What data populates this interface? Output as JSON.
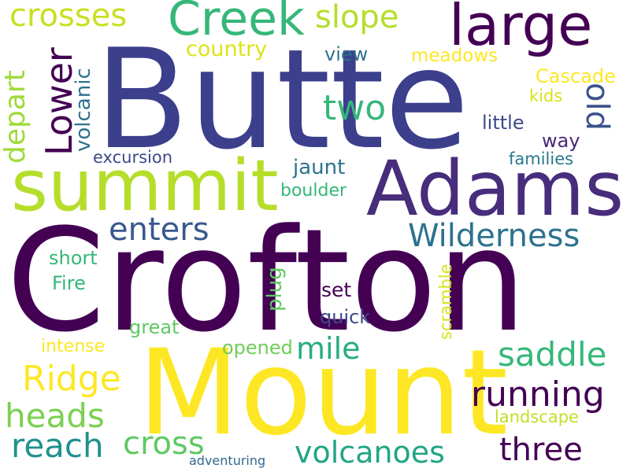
{
  "background": "#ffffff",
  "palette": {
    "dark_purple": "#440154",
    "indigo": "#3b3f8c",
    "blue": "#31688e",
    "teal": "#21918c",
    "green": "#35b779",
    "light_green": "#6ece58",
    "lime": "#b5de2b",
    "yellow": "#fde725"
  },
  "words": [
    {
      "id": "butte",
      "text": "Butte",
      "color": "#3b3f8c"
    },
    {
      "id": "crofton",
      "text": "Crofton",
      "color": "#440154"
    },
    {
      "id": "mount",
      "text": "Mount",
      "color": "#fde725"
    },
    {
      "id": "adams",
      "text": "Adams",
      "color": "#472d7b"
    },
    {
      "id": "summit",
      "text": "summit",
      "color": "#b5de2b"
    },
    {
      "id": "large",
      "text": "large",
      "color": "#440154"
    },
    {
      "id": "creek",
      "text": "Creek",
      "color": "#35b779"
    },
    {
      "id": "crosses",
      "text": "crosses",
      "color": "#c8e020"
    },
    {
      "id": "slope",
      "text": "slope",
      "color": "#b5de2b"
    },
    {
      "id": "lower",
      "text": "Lower",
      "color": "#440154"
    },
    {
      "id": "depart",
      "text": "depart",
      "color": "#a0da39"
    },
    {
      "id": "volcanic",
      "text": "volcanic",
      "color": "#2c728e"
    },
    {
      "id": "country",
      "text": "country",
      "color": "#dde318"
    },
    {
      "id": "view",
      "text": "view",
      "color": "#2c728e"
    },
    {
      "id": "meadows",
      "text": "meadows",
      "color": "#fde725"
    },
    {
      "id": "two",
      "text": "two",
      "color": "#35b779"
    },
    {
      "id": "old",
      "text": "old",
      "color": "#3b528b"
    },
    {
      "id": "cascade",
      "text": "Cascade",
      "color": "#fde725"
    },
    {
      "id": "kids",
      "text": "kids",
      "color": "#d8e219"
    },
    {
      "id": "little",
      "text": "little",
      "color": "#3e4a89"
    },
    {
      "id": "way",
      "text": "way",
      "color": "#482878"
    },
    {
      "id": "families",
      "text": "families",
      "color": "#2a788e"
    },
    {
      "id": "excursion",
      "text": "excursion",
      "color": "#3e4989"
    },
    {
      "id": "jaunt",
      "text": "jaunt",
      "color": "#2c728e"
    },
    {
      "id": "boulder",
      "text": "boulder",
      "color": "#35b779"
    },
    {
      "id": "enters",
      "text": "enters",
      "color": "#38598c"
    },
    {
      "id": "wilderness",
      "text": "Wilderness",
      "color": "#2c728e"
    },
    {
      "id": "short",
      "text": "short",
      "color": "#35b779"
    },
    {
      "id": "fire",
      "text": "Fire",
      "color": "#35b779"
    },
    {
      "id": "plug",
      "text": "plug",
      "color": "#5ec962"
    },
    {
      "id": "scramble",
      "text": "scramble",
      "color": "#d8e219"
    },
    {
      "id": "set",
      "text": "set",
      "color": "#440154"
    },
    {
      "id": "quick",
      "text": "quick",
      "color": "#3e4a89"
    },
    {
      "id": "great",
      "text": "great",
      "color": "#5ec962"
    },
    {
      "id": "intense",
      "text": "intense",
      "color": "#fde725"
    },
    {
      "id": "opened",
      "text": "opened",
      "color": "#6ece58"
    },
    {
      "id": "mile",
      "text": "mile",
      "color": "#27ad81"
    },
    {
      "id": "saddle",
      "text": "saddle",
      "color": "#35b779"
    },
    {
      "id": "ridge",
      "text": "Ridge",
      "color": "#fde725"
    },
    {
      "id": "running",
      "text": "running",
      "color": "#440154"
    },
    {
      "id": "heads",
      "text": "heads",
      "color": "#7ad151"
    },
    {
      "id": "reach",
      "text": "reach",
      "color": "#21918c"
    },
    {
      "id": "cross",
      "text": "cross",
      "color": "#5ec962"
    },
    {
      "id": "volcanoes",
      "text": "volcanoes",
      "color": "#21a585"
    },
    {
      "id": "three",
      "text": "three",
      "color": "#440154"
    },
    {
      "id": "landscape",
      "text": "landscape",
      "color": "#c2df23"
    },
    {
      "id": "adventuring",
      "text": "adventuring",
      "color": "#31688e"
    }
  ]
}
